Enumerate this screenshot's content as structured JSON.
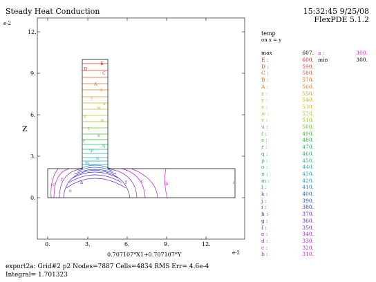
{
  "header": {
    "title": "Steady Heat Conduction",
    "timestamp": "15:32:45 9/25/08",
    "version": "FlexPDE 5.1.2",
    "yscale_tag": "e-2",
    "xscale_tag": "e-2"
  },
  "axes": {
    "ylabel": "Z",
    "xlabel": "0.707107*X1+0.707107*Y",
    "yticks": [
      "12.",
      "9.",
      "6.",
      "3.",
      "0."
    ],
    "xticks": [
      "0.",
      "3.",
      "6.",
      "9.",
      "12."
    ]
  },
  "legend": {
    "title": "temp",
    "subtitle": "on x = y",
    "max_label": "max",
    "max_value": "607.",
    "min_label": "min",
    "min_value": "300.",
    "a_label": "a :",
    "a_value": "300.",
    "levels": [
      {
        "label": "E :",
        "value": "600.",
        "color": "#e0201c"
      },
      {
        "label": "D :",
        "value": "590.",
        "color": "#e23a1e"
      },
      {
        "label": "C :",
        "value": "580.",
        "color": "#e2521e"
      },
      {
        "label": "B :",
        "value": "570.",
        "color": "#e2661e"
      },
      {
        "label": "A :",
        "value": "560.",
        "color": "#e27a1e"
      },
      {
        "label": "z :",
        "value": "550.",
        "color": "#e0961e"
      },
      {
        "label": "y :",
        "value": "540.",
        "color": "#d8ae1e"
      },
      {
        "label": "x :",
        "value": "530.",
        "color": "#c8c01e"
      },
      {
        "label": "w :",
        "value": "520.",
        "color": "#aec81e"
      },
      {
        "label": "v :",
        "value": "510.",
        "color": "#8ec81e"
      },
      {
        "label": "u :",
        "value": "500.",
        "color": "#62c41e"
      },
      {
        "label": "t :",
        "value": "490.",
        "color": "#3ec020"
      },
      {
        "label": "s :",
        "value": "480.",
        "color": "#22bc2e"
      },
      {
        "label": "r :",
        "value": "470.",
        "color": "#1eb84e"
      },
      {
        "label": "q :",
        "value": "460.",
        "color": "#1eb66e"
      },
      {
        "label": "p :",
        "value": "450.",
        "color": "#1eb48e"
      },
      {
        "label": "o :",
        "value": "440.",
        "color": "#1eb2ac"
      },
      {
        "label": "n :",
        "value": "430.",
        "color": "#1ea6be"
      },
      {
        "label": "m :",
        "value": "420.",
        "color": "#1e90c4"
      },
      {
        "label": "l :",
        "value": "410.",
        "color": "#1e78c8"
      },
      {
        "label": "k :",
        "value": "400.",
        "color": "#1e60cc"
      },
      {
        "label": "j :",
        "value": "390.",
        "color": "#1e48d0"
      },
      {
        "label": "i :",
        "value": "380.",
        "color": "#2e30d4"
      },
      {
        "label": "h :",
        "value": "370.",
        "color": "#4a1ed4"
      },
      {
        "label": "g :",
        "value": "360.",
        "color": "#661ed0"
      },
      {
        "label": "f :",
        "value": "350.",
        "color": "#7e1ecc"
      },
      {
        "label": "e :",
        "value": "340.",
        "color": "#961ec8"
      },
      {
        "label": "d :",
        "value": "330.",
        "color": "#ac1ec4"
      },
      {
        "label": "c :",
        "value": "320.",
        "color": "#c01ec0"
      },
      {
        "label": "b :",
        "value": "310.",
        "color": "#cc1ecc"
      }
    ],
    "a_color": "#d41ed4"
  },
  "footer": {
    "line1": "export2a:  Grid#2  p2  Nodes=7887 Cells=4834 RMS Err= 4.6e-4",
    "line2": "Integral=  1.701323"
  }
}
